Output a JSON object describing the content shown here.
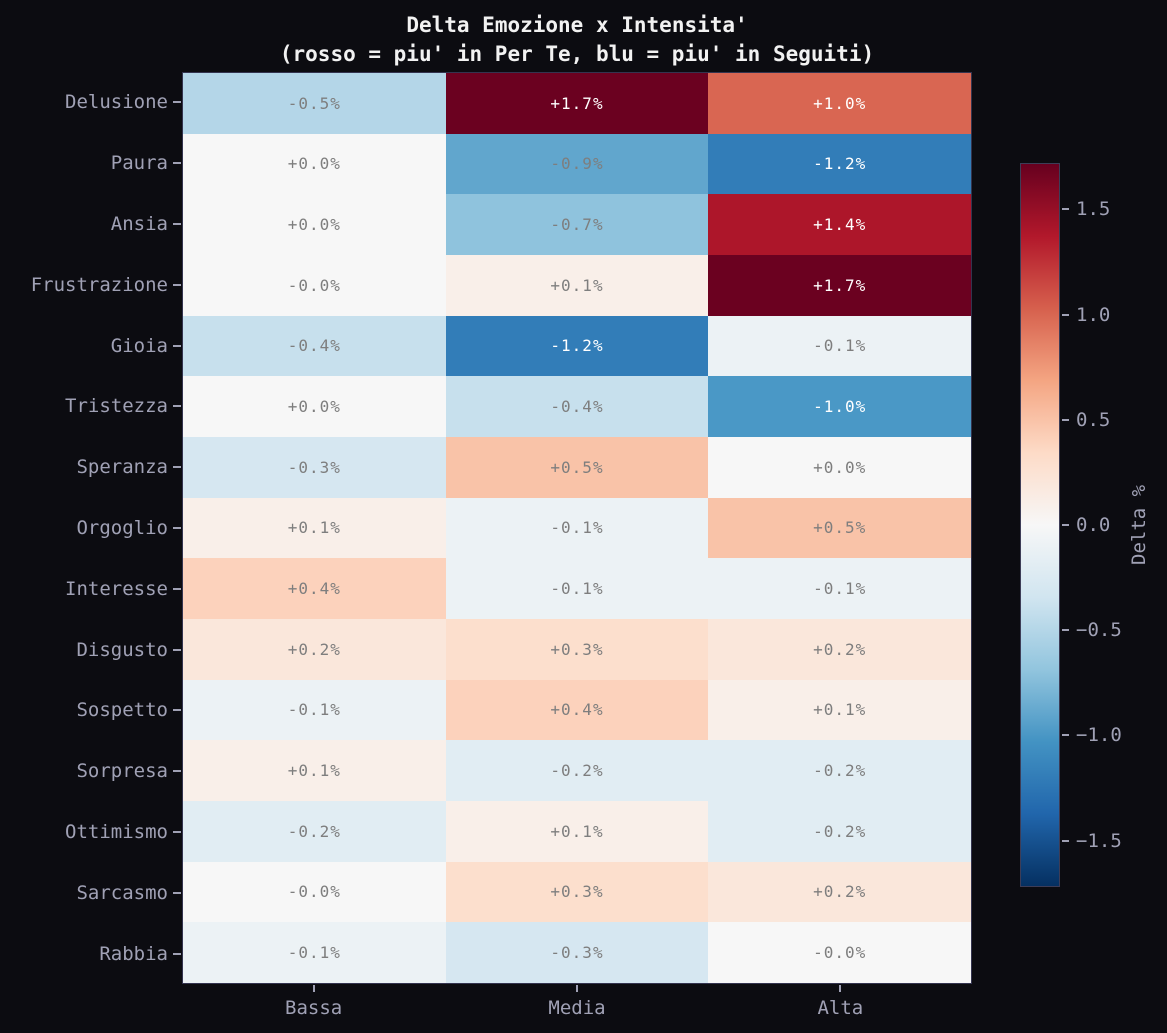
{
  "title": {
    "line1": "Delta Emozione x Intensita'",
    "line2": "(rosso = piu' in Per Te, blu = piu' in Seguiti)"
  },
  "chart_data": {
    "type": "heatmap",
    "rows": [
      "Delusione",
      "Paura",
      "Ansia",
      "Frustrazione",
      "Gioia",
      "Tristezza",
      "Speranza",
      "Orgoglio",
      "Interesse",
      "Disgusto",
      "Sospetto",
      "Sorpresa",
      "Ottimismo",
      "Sarcasmo",
      "Rabbia"
    ],
    "columns": [
      "Bassa",
      "Media",
      "Alta"
    ],
    "values": [
      [
        -0.5,
        1.7,
        1.0
      ],
      [
        0.0,
        -0.9,
        -1.2
      ],
      [
        0.0,
        -0.7,
        1.4
      ],
      [
        -0.0,
        0.1,
        1.7
      ],
      [
        -0.4,
        -1.2,
        -0.1
      ],
      [
        0.0,
        -0.4,
        -1.0
      ],
      [
        -0.3,
        0.5,
        0.0
      ],
      [
        0.1,
        -0.1,
        0.5
      ],
      [
        0.4,
        -0.1,
        -0.1
      ],
      [
        0.2,
        0.3,
        0.2
      ],
      [
        -0.1,
        0.4,
        0.1
      ],
      [
        0.1,
        -0.2,
        -0.2
      ],
      [
        -0.2,
        0.1,
        -0.2
      ],
      [
        -0.0,
        0.3,
        0.2
      ],
      [
        -0.1,
        -0.3,
        -0.0
      ]
    ],
    "labels": [
      [
        "-0.5%",
        "+1.7%",
        "+1.0%"
      ],
      [
        "+0.0%",
        "-0.9%",
        "-1.2%"
      ],
      [
        "+0.0%",
        "-0.7%",
        "+1.4%"
      ],
      [
        "-0.0%",
        "+0.1%",
        "+1.7%"
      ],
      [
        "-0.4%",
        "-1.2%",
        "-0.1%"
      ],
      [
        "+0.0%",
        "-0.4%",
        "-1.0%"
      ],
      [
        "-0.3%",
        "+0.5%",
        "+0.0%"
      ],
      [
        "+0.1%",
        "-0.1%",
        "+0.5%"
      ],
      [
        "+0.4%",
        "-0.1%",
        "-0.1%"
      ],
      [
        "+0.2%",
        "+0.3%",
        "+0.2%"
      ],
      [
        "-0.1%",
        "+0.4%",
        "+0.1%"
      ],
      [
        "+0.1%",
        "-0.2%",
        "-0.2%"
      ],
      [
        "-0.2%",
        "+0.1%",
        "-0.2%"
      ],
      [
        "-0.0%",
        "+0.3%",
        "+0.2%"
      ],
      [
        "-0.1%",
        "-0.3%",
        "-0.0%"
      ]
    ],
    "colorbar": {
      "label": "Delta %",
      "ticks": [
        "1.5",
        "1.0",
        "0.5",
        "0.0",
        "−0.5",
        "−1.0",
        "−1.5"
      ],
      "tick_values": [
        1.5,
        1.0,
        0.5,
        0.0,
        -0.5,
        -1.0,
        -1.5
      ],
      "vmin": -1.72,
      "vmax": 1.72,
      "colormap": "RdBu_r"
    },
    "xlabel": "",
    "ylabel": "",
    "grid": false,
    "legend_position": "right-colorbar"
  },
  "colors": {
    "background": "#0c0c11",
    "title_text": "#f2f2f2",
    "tick_text": "#a0a1b5",
    "spine": "#34344f",
    "annot_dark": "#7e7e7e",
    "annot_light": "#ffffff",
    "colormap_stops": [
      "#053061",
      "#2166ac",
      "#4393c3",
      "#92c5de",
      "#d1e5f0",
      "#f7f7f7",
      "#fddbc7",
      "#f4a582",
      "#d6604d",
      "#b2182b",
      "#67001f"
    ]
  }
}
